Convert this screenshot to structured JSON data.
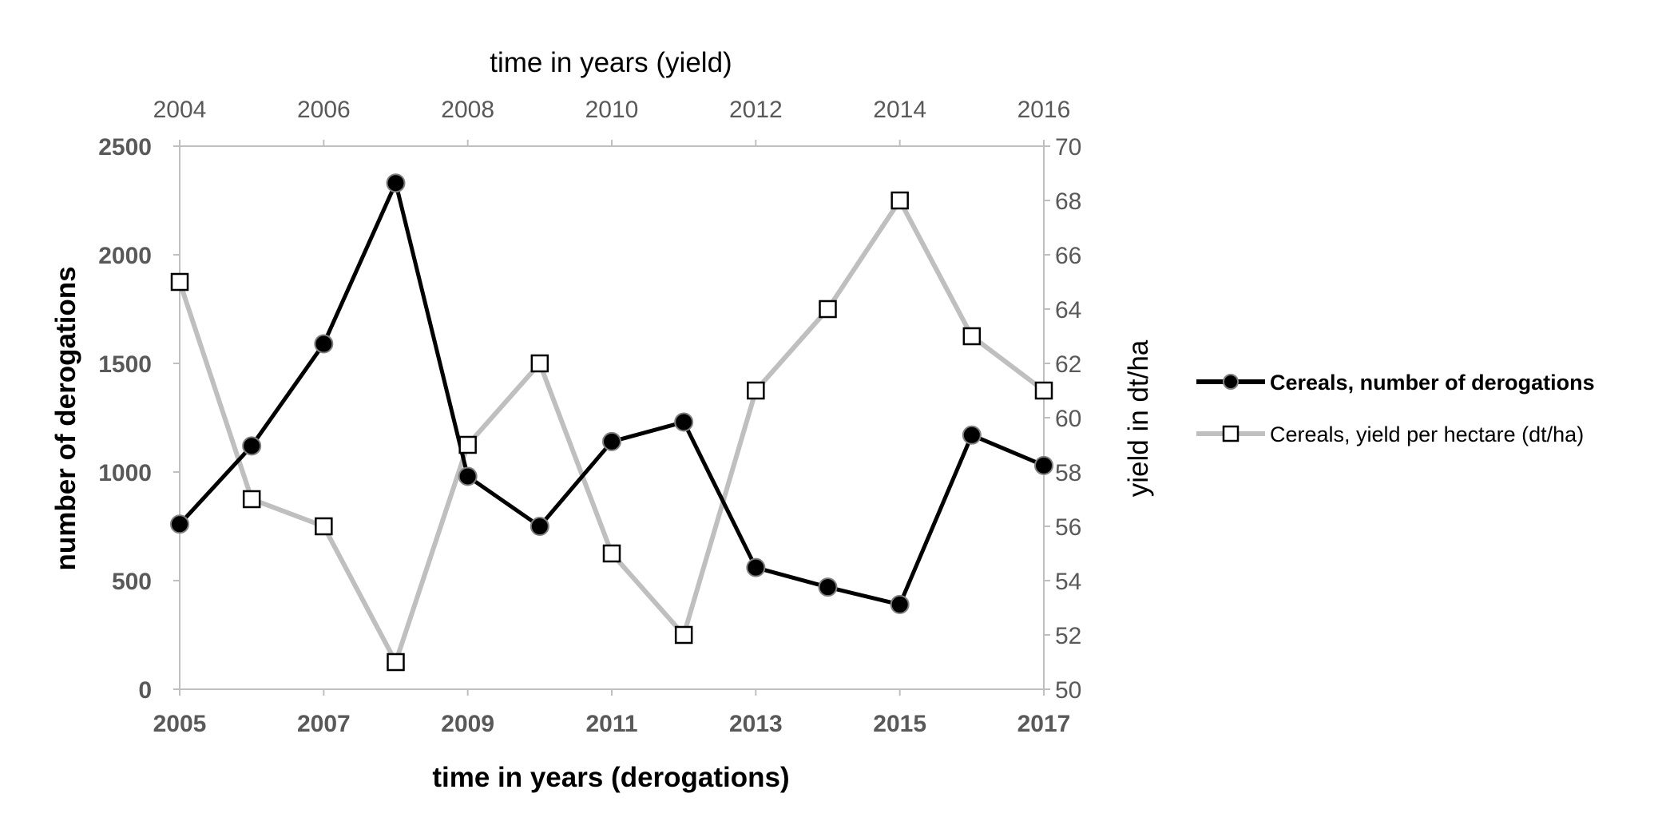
{
  "chart_data": {
    "type": "line",
    "title": "",
    "x_bottom": {
      "label": "time in years (derogations)",
      "ticks": [
        "2005",
        "2007",
        "2009",
        "2011",
        "2013",
        "2015",
        "2017"
      ],
      "range": [
        2005,
        2017
      ]
    },
    "x_top": {
      "label": "time in years (yield)",
      "ticks": [
        "2004",
        "2006",
        "2008",
        "2010",
        "2012",
        "2014",
        "2016"
      ],
      "range": [
        2004,
        2016
      ]
    },
    "y_left": {
      "label": "number of derogations",
      "ticks": [
        "0",
        "500",
        "1000",
        "1500",
        "2000",
        "2500"
      ],
      "range": [
        0,
        2500
      ]
    },
    "y_right": {
      "label": "yield in dt/ha",
      "ticks": [
        "50",
        "52",
        "54",
        "56",
        "58",
        "60",
        "62",
        "64",
        "66",
        "68",
        "70"
      ],
      "range": [
        50,
        70
      ]
    },
    "grid": false,
    "legend_position": "right",
    "series": [
      {
        "name": "Cereals, number of derogations",
        "axis": "left-bottom",
        "color": "#000000",
        "marker": "filled-circle",
        "x": [
          2005,
          2006,
          2007,
          2008,
          2009,
          2010,
          2011,
          2012,
          2013,
          2014,
          2015,
          2016,
          2017
        ],
        "values": [
          760,
          1120,
          1590,
          2330,
          980,
          750,
          1140,
          1230,
          560,
          470,
          390,
          1170,
          1030
        ]
      },
      {
        "name": "Cereals, yield per hectare (dt/ha)",
        "axis": "right-top",
        "color": "#bfbfbf",
        "marker": "open-square",
        "x": [
          2004,
          2005,
          2006,
          2007,
          2008,
          2009,
          2010,
          2011,
          2012,
          2013,
          2014,
          2015,
          2016
        ],
        "values": [
          65,
          57,
          56,
          51,
          59,
          62,
          55,
          52,
          61,
          64,
          68,
          63,
          61
        ]
      }
    ]
  }
}
